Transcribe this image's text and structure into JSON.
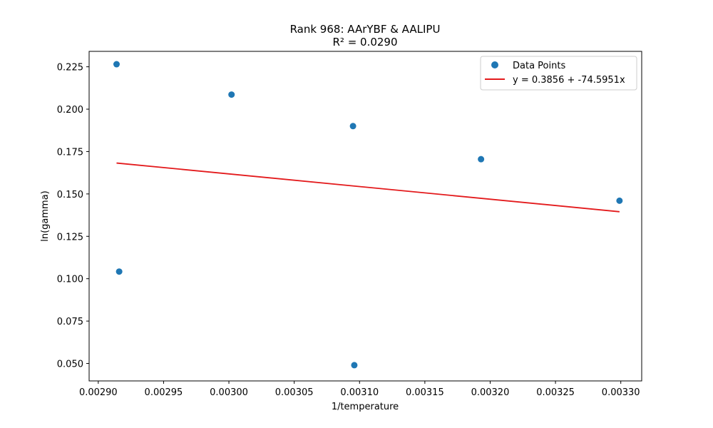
{
  "chart_data": {
    "type": "scatter",
    "title": "Rank 968: AArYBF & AALIPU",
    "subtitle": "R² = 0.0290",
    "xlabel": "1/temperature",
    "ylabel": "ln(gamma)",
    "xlim": [
      0.002893,
      0.003316
    ],
    "ylim": [
      0.0397,
      0.2341
    ],
    "xticks": [
      "0.00290",
      "0.00295",
      "0.00300",
      "0.00305",
      "0.00310",
      "0.00315",
      "0.00320",
      "0.00325",
      "0.00330"
    ],
    "xtick_values": [
      0.0029,
      0.00295,
      0.003,
      0.00305,
      0.0031,
      0.00315,
      0.0032,
      0.00325,
      0.0033
    ],
    "yticks": [
      "0.050",
      "0.075",
      "0.100",
      "0.125",
      "0.150",
      "0.175",
      "0.200",
      "0.225"
    ],
    "ytick_values": [
      0.05,
      0.075,
      0.1,
      0.125,
      0.15,
      0.175,
      0.2,
      0.225
    ],
    "grid": false,
    "legend_position": "top-right",
    "series": [
      {
        "name": "Data Points",
        "kind": "scatter",
        "color": "#1f77b4",
        "x": [
          0.002914,
          0.002916,
          0.003002,
          0.003095,
          0.003096,
          0.003193,
          0.003299
        ],
        "y": [
          0.2265,
          0.1042,
          0.2086,
          0.19,
          0.049,
          0.1705,
          0.146
        ]
      },
      {
        "name": "y = 0.3856 + -74.5951x",
        "kind": "line",
        "color": "#e31a1c",
        "intercept": 0.3856,
        "slope": -74.5951,
        "x": [
          0.002914,
          0.003299
        ]
      }
    ]
  }
}
